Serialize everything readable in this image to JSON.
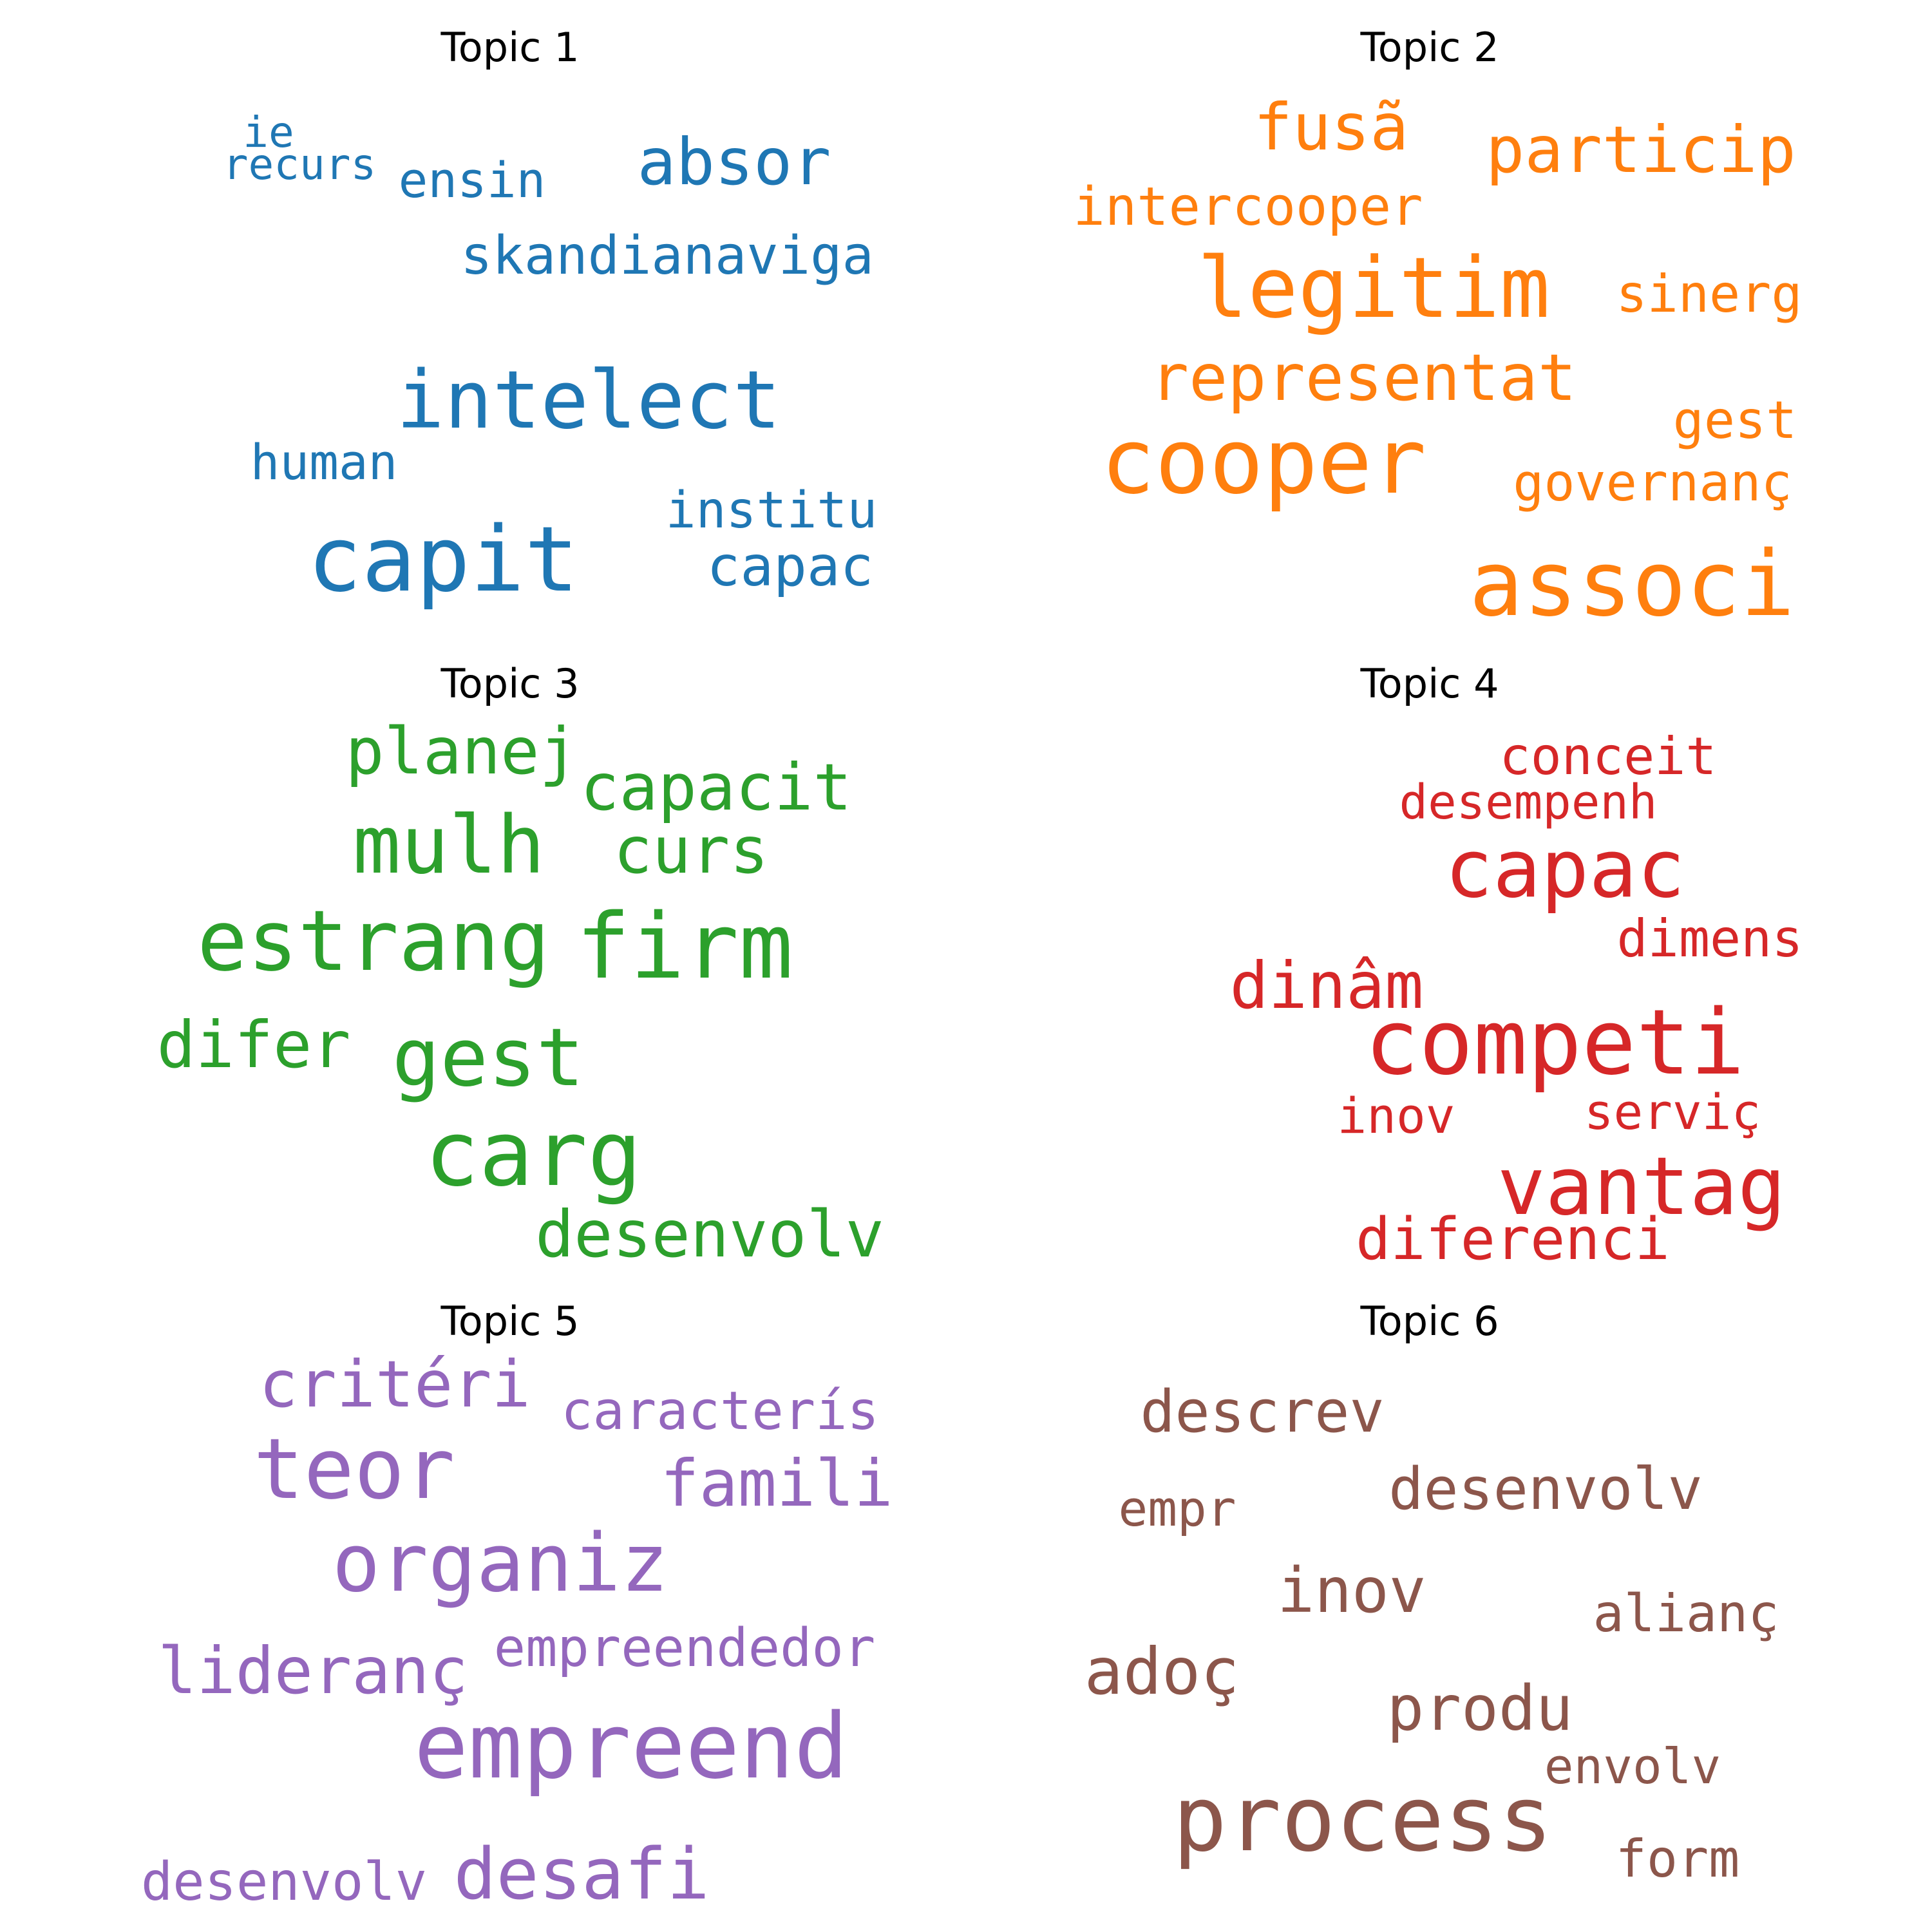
{
  "topics": [
    {
      "title": "Topic 1",
      "color": "#1f77b4",
      "words": [
        "ie",
        "recurs",
        "ensin",
        "absor",
        "skandianaviga",
        "intelect",
        "human",
        "institu",
        "capit",
        "capac"
      ]
    },
    {
      "title": "Topic 2",
      "color": "#ff7f0e",
      "words": [
        "fusã",
        "particip",
        "intercooper",
        "legitim",
        "sinerg",
        "representat",
        "gest",
        "cooper",
        "governanç",
        "associ"
      ]
    },
    {
      "title": "Topic 3",
      "color": "#2ca02c",
      "words": [
        "planej",
        "capacit",
        "mulh",
        "curs",
        "estrang",
        "firm",
        "difer",
        "gest",
        "carg",
        "desenvolv"
      ]
    },
    {
      "title": "Topic 4",
      "color": "#d62728",
      "words": [
        "conceit",
        "desempenh",
        "capac",
        "dimens",
        "dinâm",
        "competi",
        "inov",
        "serviç",
        "vantag",
        "diferenci"
      ]
    },
    {
      "title": "Topic 5",
      "color": "#9467bd",
      "words": [
        "critéri",
        "caracterís",
        "teor",
        "famili",
        "organiz",
        "lideranç",
        "empreendedor",
        "empreend",
        "desenvolv",
        "desafi"
      ]
    },
    {
      "title": "Topic 6",
      "color": "#8c564b",
      "words": [
        "descrev",
        "empr",
        "desenvolv",
        "inov",
        "alianç",
        "adoç",
        "produ",
        "envolv",
        "process",
        "form"
      ]
    }
  ]
}
